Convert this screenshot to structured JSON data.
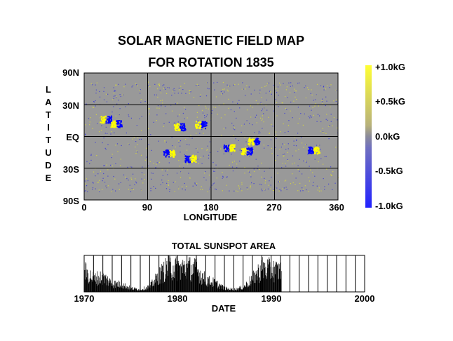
{
  "title_line1": "SOLAR MAGNETIC FIELD MAP",
  "title_line2": "FOR ROTATION 1835",
  "colors": {
    "background_field": "#999999",
    "positive": "#ffff00",
    "negative": "#0000ff",
    "zero": "#999999"
  },
  "chart_data": [
    {
      "type": "heatmap",
      "title": "SOLAR MAGNETIC FIELD MAP FOR ROTATION 1835",
      "xlabel": "LONGITUDE",
      "ylabel": "LATITUDE",
      "ylabel_letters": [
        "L",
        "A",
        "T",
        "I",
        "T",
        "U",
        "D",
        "E"
      ],
      "xlim": [
        0,
        360
      ],
      "x_ticks": [
        0,
        90,
        180,
        270,
        360
      ],
      "x_tick_labels": [
        "0",
        "90",
        "180",
        "270",
        "360"
      ],
      "y_tick_labels": [
        "90N",
        "30N",
        "EQ",
        "30S",
        "90S"
      ],
      "grid": true,
      "colorbar": {
        "range_kG": [
          -1.0,
          1.0
        ],
        "tick_labels": [
          "+1.0kG",
          "+0.5kG",
          "0.0kG",
          "-0.5kG",
          "-1.0kG"
        ]
      },
      "active_regions": [
        {
          "lon": 30,
          "lat": 16,
          "polarity_lead": "negative"
        },
        {
          "lon": 45,
          "lat": 12,
          "polarity_lead": "negative"
        },
        {
          "lon": 135,
          "lat": 9,
          "polarity_lead": "negative"
        },
        {
          "lon": 165,
          "lat": 11,
          "polarity_lead": "negative"
        },
        {
          "lon": 240,
          "lat": -4,
          "polarity_lead": "negative"
        },
        {
          "lon": 230,
          "lat": -13,
          "polarity_lead": "negative"
        },
        {
          "lon": 120,
          "lat": -15,
          "polarity_lead": "positive"
        },
        {
          "lon": 150,
          "lat": -20,
          "polarity_lead": "positive"
        },
        {
          "lon": 325,
          "lat": -12,
          "polarity_lead": "positive"
        },
        {
          "lon": 205,
          "lat": -10,
          "polarity_lead": "positive"
        }
      ]
    },
    {
      "type": "bar",
      "title": "TOTAL SUNSPOT AREA",
      "xlabel": "DATE",
      "xlim": [
        1970,
        2000
      ],
      "x_tick_labels": [
        "1970",
        "1980",
        "1990",
        "2000"
      ],
      "data_end_year": 1991.1,
      "annual_relative_area": [
        {
          "year": 1970,
          "value": 0.7
        },
        {
          "year": 1971,
          "value": 0.45
        },
        {
          "year": 1972,
          "value": 0.5
        },
        {
          "year": 1973,
          "value": 0.28
        },
        {
          "year": 1974,
          "value": 0.25
        },
        {
          "year": 1975,
          "value": 0.12
        },
        {
          "year": 1976,
          "value": 0.08
        },
        {
          "year": 1977,
          "value": 0.18
        },
        {
          "year": 1978,
          "value": 0.55
        },
        {
          "year": 1979,
          "value": 0.85
        },
        {
          "year": 1980,
          "value": 0.8
        },
        {
          "year": 1981,
          "value": 0.82
        },
        {
          "year": 1982,
          "value": 0.75
        },
        {
          "year": 1983,
          "value": 0.4
        },
        {
          "year": 1984,
          "value": 0.3
        },
        {
          "year": 1985,
          "value": 0.12
        },
        {
          "year": 1986,
          "value": 0.08
        },
        {
          "year": 1987,
          "value": 0.15
        },
        {
          "year": 1988,
          "value": 0.45
        },
        {
          "year": 1989,
          "value": 0.8
        },
        {
          "year": 1990,
          "value": 0.75
        },
        {
          "year": 1991,
          "value": 0.7
        }
      ]
    }
  ]
}
